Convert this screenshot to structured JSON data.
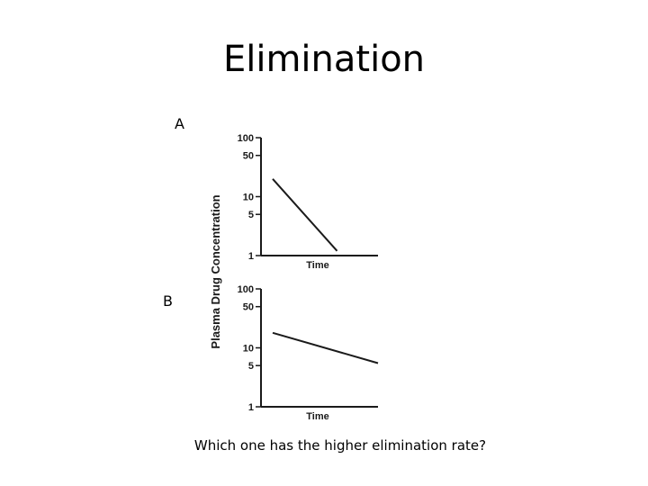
{
  "slide": {
    "title": "Elimination",
    "panel_a_label": "A",
    "panel_b_label": "B",
    "question": "Which one has the higher elimination rate?"
  },
  "colors": {
    "ink": "#1a1a1a",
    "background": "#ffffff"
  },
  "chart_data": {
    "type": "line",
    "ylabel": "Plasma Drug Concentration",
    "panels": [
      {
        "label": "A",
        "xlabel": "Time",
        "y_scale": "log",
        "ylim": [
          1,
          100
        ],
        "yticks": [
          "100",
          "50",
          "10",
          "5",
          "1"
        ],
        "ytick_values": [
          100,
          50,
          10,
          5,
          1
        ],
        "series": [
          {
            "x": [
              0.1,
              0.65
            ],
            "y": [
              20,
              1.2
            ]
          }
        ]
      },
      {
        "label": "B",
        "xlabel": "Time",
        "y_scale": "log",
        "ylim": [
          1,
          100
        ],
        "yticks": [
          "100",
          "50",
          "10",
          "5",
          "1"
        ],
        "ytick_values": [
          100,
          50,
          10,
          5,
          1
        ],
        "series": [
          {
            "x": [
              0.1,
              1.0
            ],
            "y": [
              18,
              5.5
            ]
          }
        ]
      }
    ]
  }
}
